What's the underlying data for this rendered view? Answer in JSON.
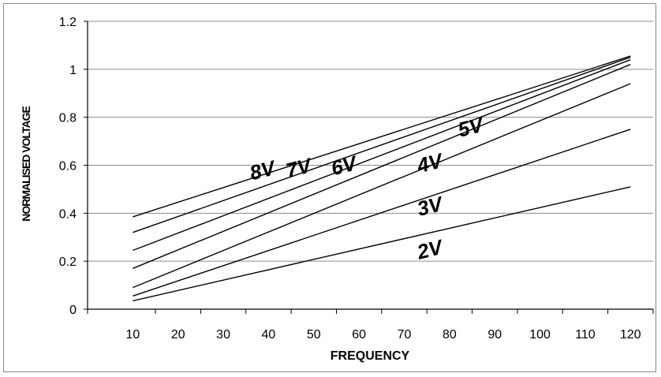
{
  "chart_data": {
    "type": "line",
    "xlabel": "FREQUENCY",
    "ylabel": "NORMALISED VOLTAGE",
    "xlim": [
      0,
      125
    ],
    "ylim": [
      0,
      1.2
    ],
    "x_ticks": [
      10,
      20,
      30,
      40,
      50,
      60,
      70,
      80,
      90,
      100,
      110,
      120
    ],
    "y_ticks": [
      0,
      0.2,
      0.4,
      0.6,
      0.8,
      1,
      1.2
    ],
    "y_tick_labels": [
      "0",
      "0.2",
      "0.4",
      "0.6",
      "0.8",
      "1",
      "1.2"
    ],
    "grid": "horizontal",
    "line_color": "#000000",
    "series": [
      {
        "name": "8V",
        "x": [
          10,
          120
        ],
        "values": [
          0.385,
          1.055
        ]
      },
      {
        "name": "7V",
        "x": [
          10,
          120
        ],
        "values": [
          0.32,
          1.05
        ]
      },
      {
        "name": "6V",
        "x": [
          10,
          120
        ],
        "values": [
          0.245,
          1.04
        ]
      },
      {
        "name": "5V",
        "x": [
          10,
          120
        ],
        "values": [
          0.17,
          1.02
        ]
      },
      {
        "name": "4V",
        "x": [
          10,
          120
        ],
        "values": [
          0.09,
          0.94
        ]
      },
      {
        "name": "3V",
        "x": [
          10,
          120
        ],
        "values": [
          0.055,
          0.75
        ]
      },
      {
        "name": "2V",
        "x": [
          10,
          120
        ],
        "values": [
          0.035,
          0.51
        ]
      }
    ],
    "annotations": [
      {
        "text": "8V",
        "x": 39,
        "y": 0.55
      },
      {
        "text": "7V",
        "x": 47,
        "y": 0.56
      },
      {
        "text": "6V",
        "x": 57,
        "y": 0.57
      },
      {
        "text": "4V",
        "x": 76,
        "y": 0.58
      },
      {
        "text": "5V",
        "x": 85,
        "y": 0.73
      },
      {
        "text": "3V",
        "x": 76,
        "y": 0.4
      },
      {
        "text": "2V",
        "x": 76,
        "y": 0.22
      }
    ]
  }
}
